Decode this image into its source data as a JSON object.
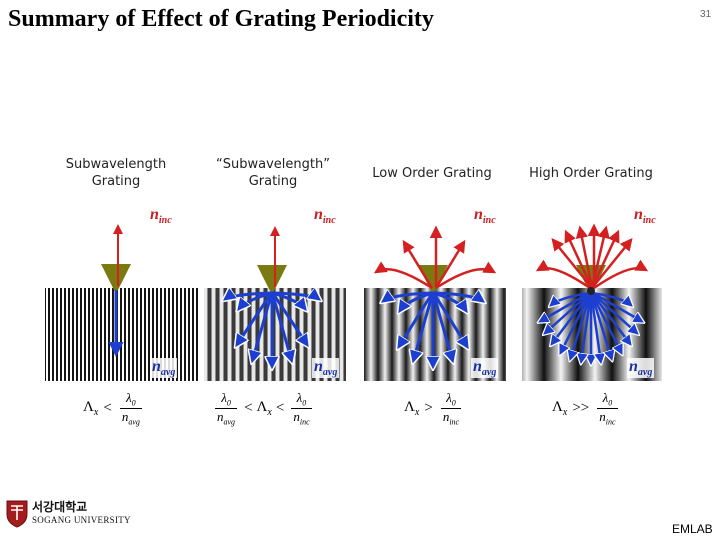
{
  "slide": {
    "title": "Summary of Effect of Grating Periodicity",
    "page_number": "31",
    "footer_right": "EMLAB"
  },
  "logo": {
    "korean": "서강대학교",
    "english": "SOGANG UNIVERSITY"
  },
  "panels": [
    {
      "label_line1": "Subwavelength",
      "label_line2": "Grating",
      "n_top_label": "n",
      "n_top_sub": "inc",
      "n_bottom_label": "n",
      "n_bottom_sub": "avg",
      "equation": {
        "lhs": "Λ",
        "lhs_sub": "x",
        "op": "<",
        "num": "λ",
        "num_sub": "0",
        "den": "n",
        "den_sub": "avg"
      }
    },
    {
      "label_line1": "“Subwavelength”",
      "label_line2": "Grating",
      "n_top_label": "n",
      "n_top_sub": "inc",
      "n_bottom_label": "n",
      "n_bottom_sub": "avg",
      "equation": {
        "num1": "λ",
        "num1_sub": "0",
        "den1": "n",
        "den1_sub": "avg",
        "op1": "<",
        "mid": "Λ",
        "mid_sub": "x",
        "op2": "<",
        "num2": "λ",
        "num2_sub": "0",
        "den2": "n",
        "den2_sub": "inc"
      }
    },
    {
      "label_line1": "Low Order Grating",
      "label_line2": "",
      "n_top_label": "n",
      "n_top_sub": "inc",
      "n_bottom_label": "n",
      "n_bottom_sub": "avg",
      "equation": {
        "lhs": "Λ",
        "lhs_sub": "x",
        "op": ">",
        "num": "λ",
        "num_sub": "0",
        "den": "n",
        "den_sub": "inc"
      }
    },
    {
      "label_line1": "High Order Grating",
      "label_line2": "",
      "n_top_label": "n",
      "n_top_sub": "inc",
      "n_bottom_label": "n",
      "n_bottom_sub": "avg",
      "equation": {
        "lhs": "Λ",
        "lhs_sub": "x",
        "op": ">>",
        "num": "λ",
        "num_sub": "0",
        "den": "n",
        "den_sub": "inc"
      }
    }
  ],
  "colors": {
    "incident_top": "#1e8c1e",
    "incident_bottom": "#a0a020",
    "reflected": "#d42020",
    "transmitted": "#1c3fd0",
    "n_label": "#c81e1e",
    "n_avg_label": "#1c2fa0"
  }
}
